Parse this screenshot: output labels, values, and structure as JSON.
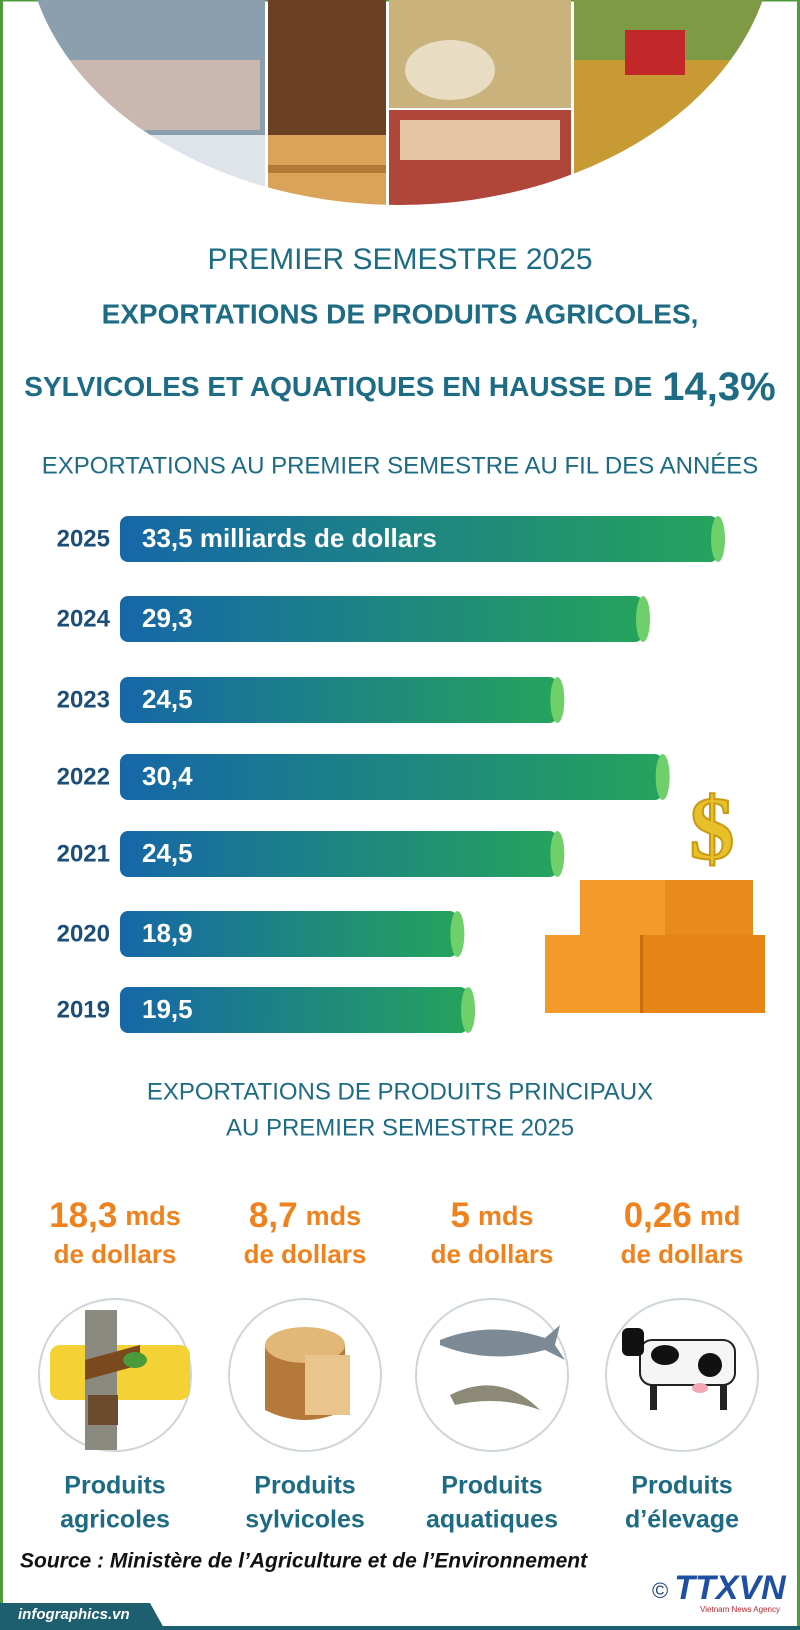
{
  "header": {
    "line1": "PREMIER SEMESTRE 2025",
    "line2": "EXPORTATIONS DE PRODUITS AGRICOLES,",
    "line3": "SYLVICOLES ET AQUATIQUES EN HAUSSE DE",
    "highlight": "14,3%"
  },
  "chart_data": {
    "type": "bar",
    "orientation": "horizontal",
    "title": "EXPORTATIONS AU PREMIER SEMESTRE AU FIL DES ANNÉES",
    "categories": [
      "2025",
      "2024",
      "2023",
      "2022",
      "2021",
      "2020",
      "2019"
    ],
    "values": [
      33.5,
      29.3,
      24.5,
      30.4,
      24.5,
      18.9,
      19.5
    ],
    "value_labels": [
      "33,5 milliards de dollars",
      "29,3",
      "24,5",
      "30,4",
      "24,5",
      "18,9",
      "19,5"
    ],
    "color_start": "#1667a8",
    "color_end": "#25a35c",
    "cap_color": "#6fcf6a"
  },
  "products": {
    "title_lines": [
      "EXPORTATIONS DE PRODUITS PRINCIPAUX",
      "AU PREMIER SEMESTRE 2025"
    ],
    "items": [
      {
        "amount": "18,3",
        "unit": "mds",
        "amount_line2": "de dollars",
        "name_lines": [
          "Produits",
          "agricoles"
        ]
      },
      {
        "amount": "8,7",
        "unit": "mds",
        "amount_line2": "de dollars",
        "name_lines": [
          "Produits",
          "sylvicoles"
        ]
      },
      {
        "amount": "5",
        "unit": "mds",
        "amount_line2": "de dollars",
        "name_lines": [
          "Produits",
          "aquatiques"
        ]
      },
      {
        "amount": "0,26",
        "unit": "md",
        "amount_line2": "de dollars",
        "name_lines": [
          "Produits",
          "d’élevage"
        ]
      }
    ]
  },
  "source": "Source : Ministère de l’Agriculture et de l’Environnement",
  "footer": {
    "site": "infographics.vn",
    "copyright": "©",
    "logo": "TTXVN",
    "agency": "Vietnam News Agency"
  }
}
